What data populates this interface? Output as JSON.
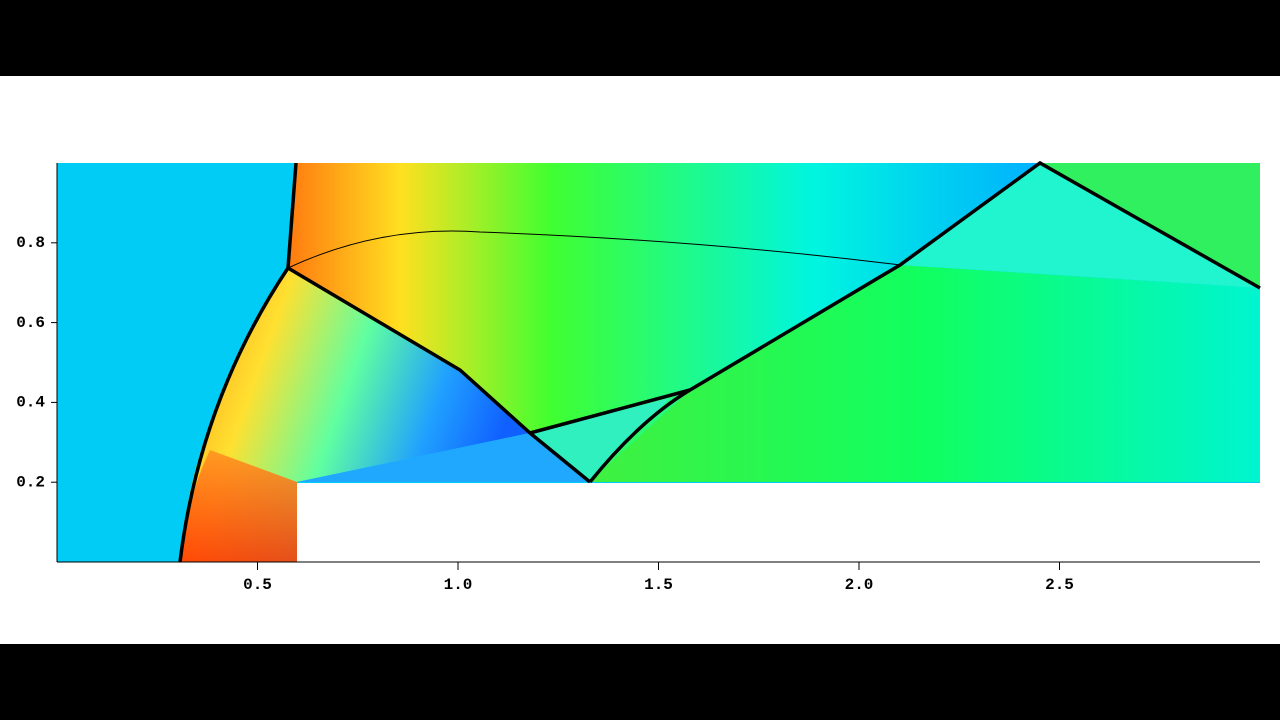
{
  "chart_data": {
    "type": "contour",
    "xlim": [
      0,
      3
    ],
    "ylim": [
      0,
      1
    ],
    "xticks": [
      0.5,
      {
        "value": 1,
        "label": "1.0"
      },
      1.5,
      {
        "value": 2,
        "label": "2.0"
      },
      2.5
    ],
    "yticks": [
      0.2,
      0.4,
      0.6,
      0.8
    ]
  }
}
